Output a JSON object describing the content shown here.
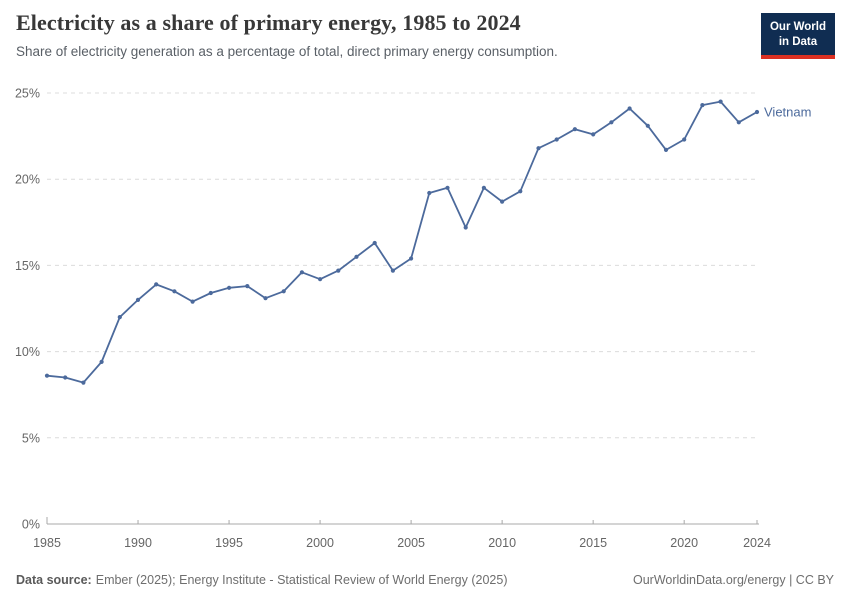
{
  "header": {
    "title": "Electricity as a share of primary energy, 1985 to 2024",
    "subtitle": "Share of electricity generation as a percentage of total, direct primary energy consumption.",
    "logo": {
      "line1": "Our World",
      "line2": "in Data"
    }
  },
  "colors": {
    "line": "#4C6A9C",
    "grid": "#dcdcdc",
    "axis": "#a8a8a8",
    "tick_label": "#666666",
    "logo_bg": "#102d52",
    "logo_accent": "#dc3022"
  },
  "chart_data": {
    "type": "line",
    "title": "Electricity as a share of primary energy, 1985 to 2024",
    "subtitle": "Share of electricity generation as a percentage of total, direct primary energy consumption.",
    "series_name": "Vietnam",
    "xlabel": "",
    "ylabel": "",
    "ylim": [
      0,
      25
    ],
    "grid": "horizontal-dashed",
    "legend_position": "end-of-line-label",
    "y_ticks": [
      0,
      5,
      10,
      15,
      20,
      25
    ],
    "y_tick_labels": [
      "0%",
      "5%",
      "10%",
      "15%",
      "20%",
      "25%"
    ],
    "x_ticks": [
      1985,
      1990,
      1995,
      2000,
      2005,
      2010,
      2015,
      2020,
      2024
    ],
    "x_tick_labels": [
      "1985",
      "1990",
      "1995",
      "2000",
      "2005",
      "2010",
      "2015",
      "2020",
      "2024"
    ],
    "x": [
      1985,
      1986,
      1987,
      1988,
      1989,
      1990,
      1991,
      1992,
      1993,
      1994,
      1995,
      1996,
      1997,
      1998,
      1999,
      2000,
      2001,
      2002,
      2003,
      2004,
      2005,
      2006,
      2007,
      2008,
      2009,
      2010,
      2011,
      2012,
      2013,
      2014,
      2015,
      2016,
      2017,
      2018,
      2019,
      2020,
      2021,
      2022,
      2023,
      2024
    ],
    "values": [
      8.6,
      8.5,
      8.2,
      9.4,
      12.0,
      13.0,
      13.9,
      13.5,
      12.9,
      13.4,
      13.7,
      13.8,
      13.1,
      13.5,
      14.6,
      14.2,
      14.7,
      15.5,
      16.3,
      14.7,
      15.4,
      19.2,
      19.5,
      17.2,
      19.5,
      18.7,
      19.3,
      21.8,
      22.3,
      22.9,
      22.6,
      23.3,
      24.1,
      23.1,
      21.7,
      22.3,
      24.3,
      24.5,
      23.3,
      23.9
    ],
    "line_color": "#4C6A9C"
  },
  "footer": {
    "source_label": "Data source:",
    "source_text": "Ember (2025); Energy Institute - Statistical Review of World Energy (2025)",
    "right_text": "OurWorldinData.org/energy | CC BY"
  }
}
